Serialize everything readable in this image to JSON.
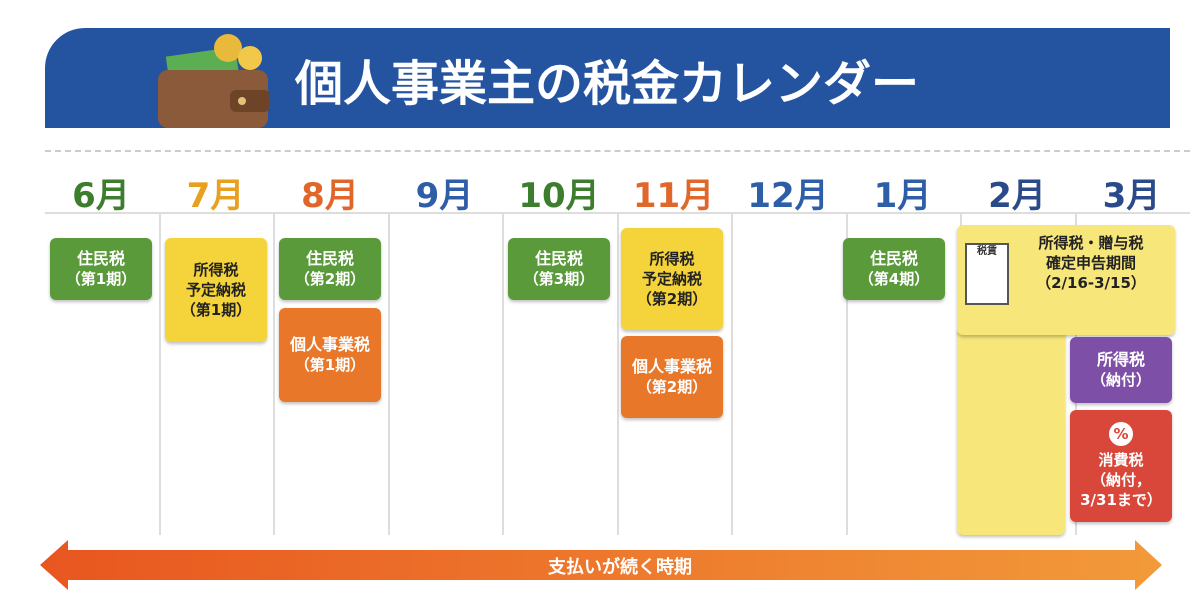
{
  "title": "個人事業主の税金カレンダー",
  "months": [
    {
      "label": "6月",
      "color": "#3d7d2e"
    },
    {
      "label": "7月",
      "color": "#e8a020"
    },
    {
      "label": "8月",
      "color": "#e0662a"
    },
    {
      "label": "9月",
      "color": "#2e5ea8"
    },
    {
      "label": "10月",
      "color": "#3d7d2e"
    },
    {
      "label": "11月",
      "color": "#e0662a"
    },
    {
      "label": "12月",
      "color": "#2e5ea8"
    },
    {
      "label": "1月",
      "color": "#2e5ea8"
    },
    {
      "label": "2月",
      "color": "#2a4a8a"
    },
    {
      "label": "3月",
      "color": "#2a4a8a"
    }
  ],
  "events": [
    {
      "lines": [
        "住民税",
        "（第1期）"
      ]
    },
    {
      "lines": [
        "所得税",
        "予定納税",
        "（第1期）"
      ]
    },
    {
      "lines": [
        "住民税",
        "（第2期）"
      ]
    },
    {
      "lines": [
        "個人事業税",
        "（第1期）"
      ]
    },
    {
      "lines": [
        "住民税",
        "（第3期）"
      ]
    },
    {
      "lines": [
        "所得税",
        "予定納税",
        "（第2期）"
      ]
    },
    {
      "lines": [
        "個人事業税",
        "（第2期）"
      ]
    },
    {
      "lines": [
        "住民税",
        "（第4期）"
      ]
    },
    {
      "icon_label": "税賃",
      "lines": [
        "所得税・贈与税",
        "確定申告期間",
        "（2/16-3/15）"
      ]
    },
    {
      "lines": [
        "所得税",
        "（納付）"
      ]
    },
    {
      "badge": "%",
      "lines": [
        "消費税",
        "（納付，",
        "3/31まで）"
      ]
    }
  ],
  "arrow": "支払いが続く時期"
}
